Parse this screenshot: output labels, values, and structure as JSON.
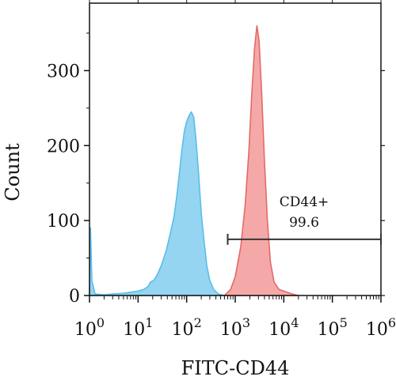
{
  "chart_data": {
    "type": "area",
    "title": "",
    "xlabel": "FITC-CD44",
    "ylabel": "Count",
    "xscale": "log",
    "xlim": [
      1,
      1000000
    ],
    "ylim": [
      0,
      390
    ],
    "x_ticks": [
      {
        "value": 1,
        "base": "10",
        "exp": "0"
      },
      {
        "value": 10,
        "base": "10",
        "exp": "1"
      },
      {
        "value": 100,
        "base": "10",
        "exp": "2"
      },
      {
        "value": 1000,
        "base": "10",
        "exp": "3"
      },
      {
        "value": 10000,
        "base": "10",
        "exp": "4"
      },
      {
        "value": 100000,
        "base": "10",
        "exp": "5"
      },
      {
        "value": 1000000,
        "base": "10",
        "exp": "6"
      }
    ],
    "y_ticks": [
      {
        "value": 0,
        "label": "0"
      },
      {
        "value": 100,
        "label": "100"
      },
      {
        "value": 200,
        "label": "200"
      },
      {
        "value": 300,
        "label": "300"
      }
    ],
    "grid": false,
    "series": [
      {
        "color": "#8fd3f0",
        "stroke": "#5bbde8",
        "points": [
          [
            1,
            0
          ],
          [
            1.05,
            90
          ],
          [
            1.12,
            20
          ],
          [
            1.3,
            2
          ],
          [
            2,
            1
          ],
          [
            3,
            2
          ],
          [
            5,
            3
          ],
          [
            8,
            5
          ],
          [
            10,
            6
          ],
          [
            13,
            8
          ],
          [
            16,
            12
          ],
          [
            18,
            18
          ],
          [
            21,
            20
          ],
          [
            25,
            28
          ],
          [
            30,
            40
          ],
          [
            38,
            60
          ],
          [
            45,
            80
          ],
          [
            55,
            105
          ],
          [
            62,
            130
          ],
          [
            70,
            160
          ],
          [
            80,
            195
          ],
          [
            90,
            220
          ],
          [
            100,
            232
          ],
          [
            112,
            240
          ],
          [
            125,
            245
          ],
          [
            140,
            238
          ],
          [
            155,
            210
          ],
          [
            175,
            165
          ],
          [
            200,
            110
          ],
          [
            230,
            70
          ],
          [
            260,
            40
          ],
          [
            300,
            20
          ],
          [
            360,
            8
          ],
          [
            450,
            2
          ],
          [
            600,
            0
          ]
        ]
      },
      {
        "color": "#f4a3a3",
        "stroke": "#e46a6a",
        "points": [
          [
            600,
            0
          ],
          [
            800,
            8
          ],
          [
            1000,
            25
          ],
          [
            1300,
            65
          ],
          [
            1600,
            120
          ],
          [
            1900,
            190
          ],
          [
            2200,
            270
          ],
          [
            2500,
            330
          ],
          [
            2800,
            360
          ],
          [
            3100,
            340
          ],
          [
            3500,
            270
          ],
          [
            4000,
            180
          ],
          [
            4600,
            100
          ],
          [
            5300,
            45
          ],
          [
            6300,
            18
          ],
          [
            8000,
            8
          ],
          [
            11000,
            5
          ],
          [
            15000,
            2
          ],
          [
            20000,
            0
          ]
        ]
      }
    ],
    "gate": {
      "name": "CD44+",
      "value": "99.6",
      "x_start": 700,
      "x_end": 1000000,
      "y": 75
    }
  }
}
